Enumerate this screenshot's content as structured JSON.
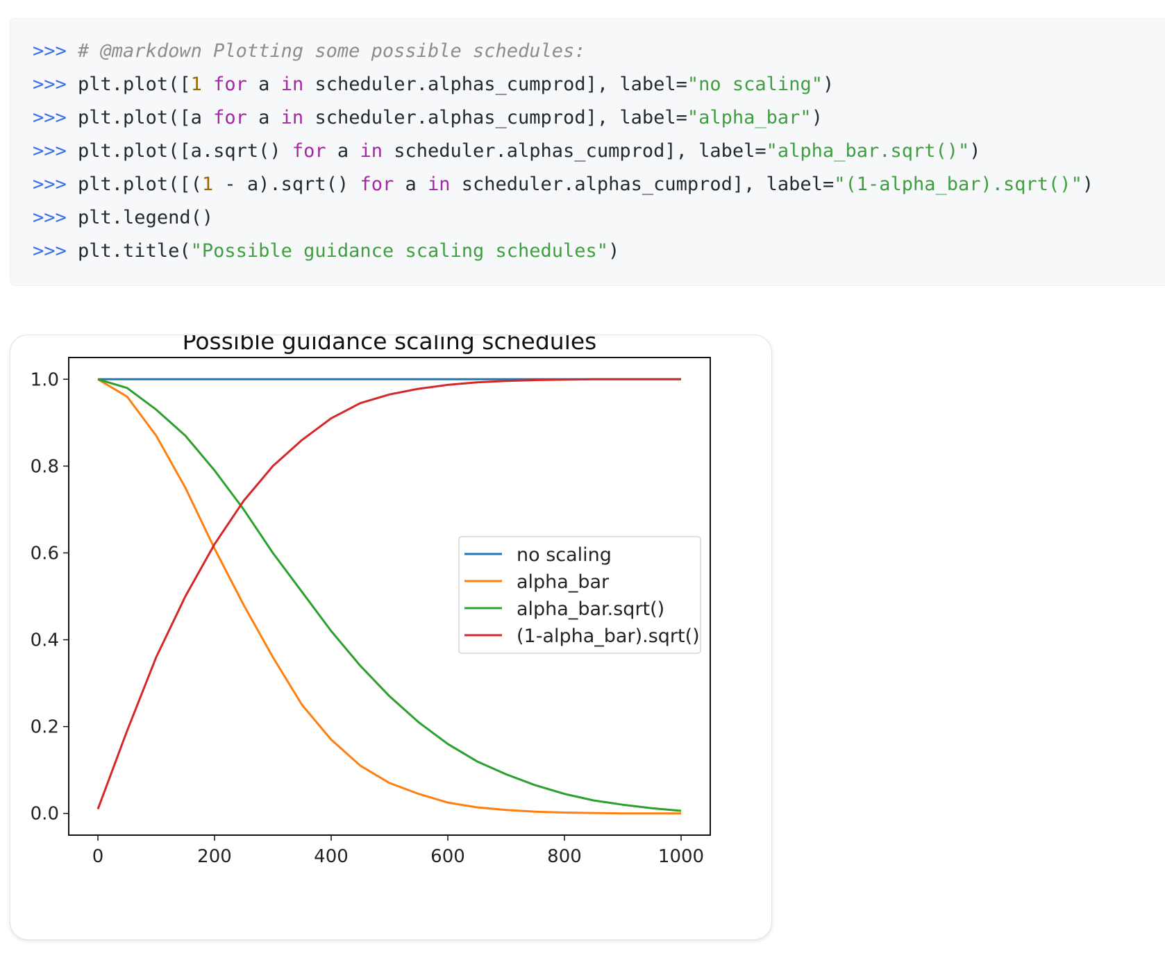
{
  "code": {
    "lines": [
      [
        {
          "t": "# @markdown Plotting some possible schedules:",
          "c": "comment"
        }
      ],
      [
        {
          "t": "plt.plot([",
          "c": "plain"
        },
        {
          "t": "1",
          "c": "num"
        },
        {
          "t": " ",
          "c": "plain"
        },
        {
          "t": "for",
          "c": "kw"
        },
        {
          "t": " a ",
          "c": "plain"
        },
        {
          "t": "in",
          "c": "kw"
        },
        {
          "t": " scheduler.alphas_cumprod], label=",
          "c": "plain"
        },
        {
          "t": "\"no scaling\"",
          "c": "str"
        },
        {
          "t": ")",
          "c": "plain"
        }
      ],
      [
        {
          "t": "plt.plot([a ",
          "c": "plain"
        },
        {
          "t": "for",
          "c": "kw"
        },
        {
          "t": " a ",
          "c": "plain"
        },
        {
          "t": "in",
          "c": "kw"
        },
        {
          "t": " scheduler.alphas_cumprod], label=",
          "c": "plain"
        },
        {
          "t": "\"alpha_bar\"",
          "c": "str"
        },
        {
          "t": ")",
          "c": "plain"
        }
      ],
      [
        {
          "t": "plt.plot([a.sqrt() ",
          "c": "plain"
        },
        {
          "t": "for",
          "c": "kw"
        },
        {
          "t": " a ",
          "c": "plain"
        },
        {
          "t": "in",
          "c": "kw"
        },
        {
          "t": " scheduler.alphas_cumprod], label=",
          "c": "plain"
        },
        {
          "t": "\"alpha_bar.sqrt()\"",
          "c": "str"
        },
        {
          "t": ")",
          "c": "plain"
        }
      ],
      [
        {
          "t": "plt.plot([(",
          "c": "plain"
        },
        {
          "t": "1",
          "c": "num"
        },
        {
          "t": " - a).sqrt() ",
          "c": "plain"
        },
        {
          "t": "for",
          "c": "kw"
        },
        {
          "t": " a ",
          "c": "plain"
        },
        {
          "t": "in",
          "c": "kw"
        },
        {
          "t": " scheduler.alphas_cumprod], label=",
          "c": "plain"
        },
        {
          "t": "\"(1-alpha_bar).sqrt()\"",
          "c": "str"
        },
        {
          "t": ")",
          "c": "plain"
        }
      ],
      [
        {
          "t": "plt.legend()",
          "c": "plain"
        }
      ],
      [
        {
          "t": "plt.title(",
          "c": "plain"
        },
        {
          "t": "\"Possible guidance scaling schedules\"",
          "c": "str"
        },
        {
          "t": ")",
          "c": "plain"
        }
      ]
    ]
  },
  "prompt_symbol": ">>>",
  "colors": {
    "no_scaling": "#1f77b4",
    "alpha_bar": "#ff7f0e",
    "alpha_bar_sqrt": "#2ca02c",
    "one_minus_alpha_bar_sqrt": "#d62728"
  },
  "chart_data": {
    "type": "line",
    "title": "Possible guidance scaling schedules",
    "xlabel": "",
    "ylabel": "",
    "xlim": [
      -50,
      1050
    ],
    "ylim": [
      -0.05,
      1.05
    ],
    "xticks": [
      0,
      200,
      400,
      600,
      800,
      1000
    ],
    "yticks": [
      0.0,
      0.2,
      0.4,
      0.6,
      0.8,
      1.0
    ],
    "xtick_labels": [
      "0",
      "200",
      "400",
      "600",
      "800",
      "1000"
    ],
    "ytick_labels": [
      "0.0",
      "0.2",
      "0.4",
      "0.6",
      "0.8",
      "1.0"
    ],
    "grid": false,
    "legend_position": "center-right",
    "x": [
      0,
      50,
      100,
      150,
      200,
      250,
      300,
      350,
      400,
      450,
      500,
      550,
      600,
      650,
      700,
      750,
      800,
      850,
      900,
      950,
      1000
    ],
    "series": [
      {
        "name": "no scaling",
        "color": "#1f77b4",
        "values": [
          1.0,
          1.0,
          1.0,
          1.0,
          1.0,
          1.0,
          1.0,
          1.0,
          1.0,
          1.0,
          1.0,
          1.0,
          1.0,
          1.0,
          1.0,
          1.0,
          1.0,
          1.0,
          1.0,
          1.0,
          1.0
        ]
      },
      {
        "name": "alpha_bar",
        "color": "#ff7f0e",
        "values": [
          1.0,
          0.96,
          0.87,
          0.75,
          0.61,
          0.48,
          0.36,
          0.25,
          0.17,
          0.11,
          0.07,
          0.045,
          0.025,
          0.014,
          0.008,
          0.004,
          0.002,
          0.001,
          0.0,
          0.0,
          0.0
        ]
      },
      {
        "name": "alpha_bar.sqrt()",
        "color": "#2ca02c",
        "values": [
          1.0,
          0.98,
          0.93,
          0.87,
          0.79,
          0.7,
          0.6,
          0.51,
          0.42,
          0.34,
          0.27,
          0.21,
          0.16,
          0.12,
          0.09,
          0.065,
          0.045,
          0.03,
          0.02,
          0.012,
          0.006
        ]
      },
      {
        "name": "(1-alpha_bar).sqrt()",
        "color": "#d62728",
        "values": [
          0.01,
          0.19,
          0.36,
          0.5,
          0.62,
          0.72,
          0.8,
          0.86,
          0.91,
          0.945,
          0.965,
          0.978,
          0.987,
          0.993,
          0.996,
          0.998,
          0.999,
          1.0,
          1.0,
          1.0,
          1.0
        ]
      }
    ]
  }
}
